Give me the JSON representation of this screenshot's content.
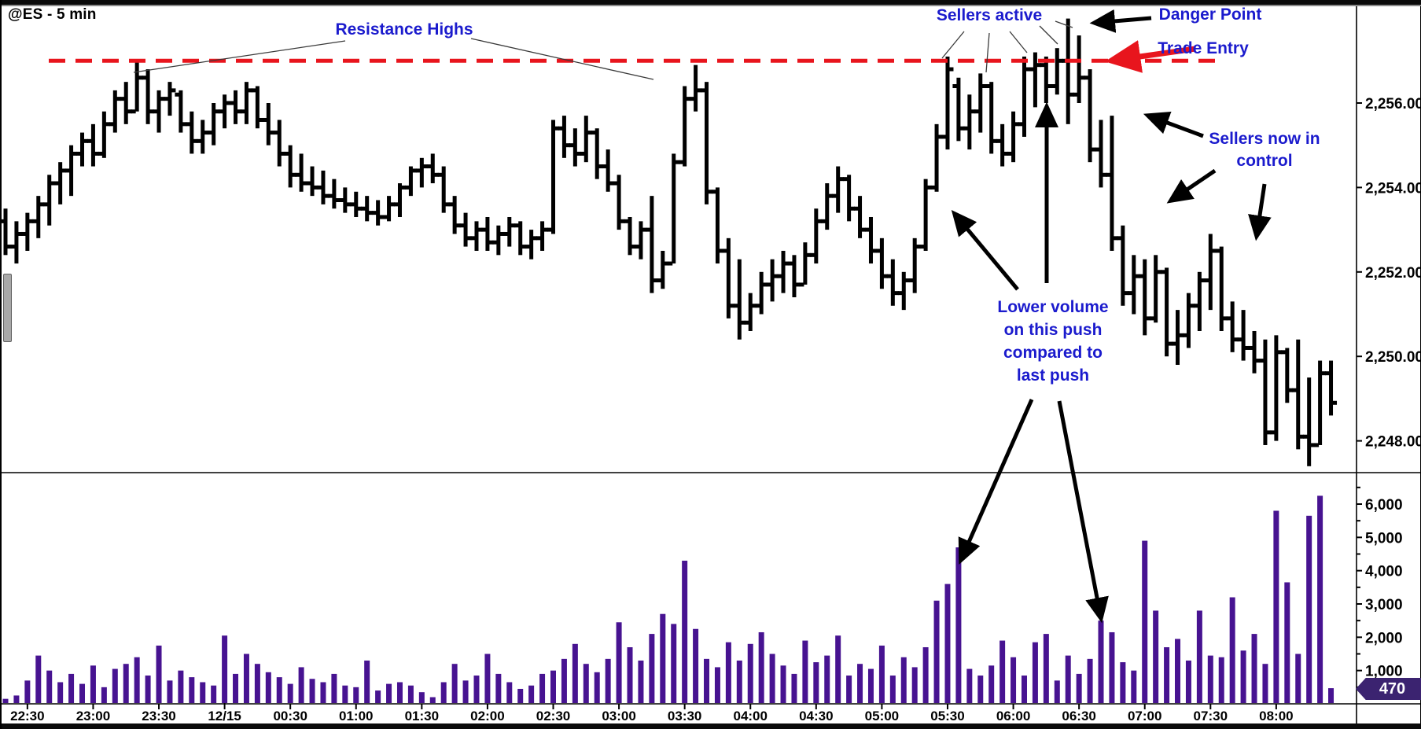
{
  "window": {
    "title": "@ES - 5 min"
  },
  "colors": {
    "bar": "#000000",
    "volume": "#471391",
    "resistance_line": "#e8151d",
    "annotation_text": "#1b1bcd",
    "annotation_arrow": "#000000",
    "trade_entry_arrow": "#e8151d",
    "badge_bg": "#3b2370",
    "badge_text": "#ffffff"
  },
  "annotations": {
    "resistance": "Resistance Highs",
    "sellers_active": "Sellers active",
    "danger_point": "Danger Point",
    "trade_entry": "Trade Entry",
    "sellers_control": {
      "line1": "Sellers now in",
      "line2": "control"
    },
    "lower_volume": {
      "line1": "Lower volume",
      "line2": "on this push",
      "line3": "compared to",
      "line4": "last push"
    }
  },
  "last_volume_badge": "470",
  "price_axis": {
    "labels": [
      "2,256.00",
      "2,254.00",
      "2,252.00",
      "2,250.00",
      "2,248.00"
    ],
    "values": [
      2256,
      2254,
      2252,
      2250,
      2248
    ]
  },
  "volume_axis": {
    "labels": [
      "6,000",
      "5,000",
      "4,000",
      "3,000",
      "2,000",
      "1,000"
    ],
    "values": [
      6000,
      5000,
      4000,
      3000,
      2000,
      1000
    ]
  },
  "time_axis": {
    "labels": [
      {
        "text": "22:30",
        "bar": 2
      },
      {
        "text": "23:00",
        "bar": 8
      },
      {
        "text": "23:30",
        "bar": 14
      },
      {
        "text": "12/15",
        "bar": 20,
        "session_break": true
      },
      {
        "text": "00:30",
        "bar": 26
      },
      {
        "text": "01:00",
        "bar": 32
      },
      {
        "text": "01:30",
        "bar": 38
      },
      {
        "text": "02:00",
        "bar": 44
      },
      {
        "text": "02:30",
        "bar": 50
      },
      {
        "text": "03:00",
        "bar": 56
      },
      {
        "text": "03:30",
        "bar": 62
      },
      {
        "text": "04:00",
        "bar": 68
      },
      {
        "text": "04:30",
        "bar": 74
      },
      {
        "text": "05:00",
        "bar": 80
      },
      {
        "text": "05:30",
        "bar": 86
      },
      {
        "text": "06:00",
        "bar": 92
      },
      {
        "text": "06:30",
        "bar": 98
      },
      {
        "text": "07:00",
        "bar": 104
      },
      {
        "text": "07:30",
        "bar": 110
      },
      {
        "text": "08:00",
        "bar": 116
      }
    ]
  },
  "chart_data": {
    "type": "bar",
    "subtype": "ohlc-with-volume",
    "title": "@ES - 5 min",
    "instrument": "@ES",
    "timeframe": "5 min",
    "resistance_level": 2257.0,
    "price_range": [
      2247.0,
      2258.3
    ],
    "volume_range": [
      0,
      6500
    ],
    "bar_tuple": [
      "time",
      "open",
      "high",
      "low",
      "close",
      "volume"
    ],
    "bars": [
      [
        "22:20",
        2253.2,
        2253.5,
        2252.4,
        2252.6,
        150
      ],
      [
        "22:25",
        2252.6,
        2253.2,
        2252.2,
        2252.9,
        250
      ],
      [
        "22:30",
        2252.9,
        2253.4,
        2252.5,
        2253.2,
        700
      ],
      [
        "22:35",
        2253.2,
        2253.8,
        2252.8,
        2253.6,
        1450
      ],
      [
        "22:40",
        2253.6,
        2254.3,
        2253.1,
        2254.1,
        1000
      ],
      [
        "22:45",
        2254.1,
        2254.6,
        2253.6,
        2254.4,
        650
      ],
      [
        "22:50",
        2254.4,
        2255.0,
        2253.8,
        2254.8,
        900
      ],
      [
        "22:55",
        2254.8,
        2255.3,
        2254.5,
        2255.1,
        600
      ],
      [
        "23:00",
        2255.1,
        2255.5,
        2254.5,
        2254.8,
        1150
      ],
      [
        "23:05",
        2254.8,
        2255.8,
        2254.7,
        2255.5,
        500
      ],
      [
        "23:10",
        2255.5,
        2256.3,
        2255.3,
        2256.1,
        1050
      ],
      [
        "23:15",
        2256.1,
        2256.5,
        2255.5,
        2255.8,
        1200
      ],
      [
        "23:20",
        2255.8,
        2257.0,
        2255.8,
        2256.6,
        1400
      ],
      [
        "23:25",
        2256.6,
        2256.8,
        2255.5,
        2255.8,
        850
      ],
      [
        "23:30",
        2255.8,
        2256.3,
        2255.3,
        2256.1,
        1750
      ],
      [
        "23:35",
        2256.1,
        2256.5,
        2255.7,
        2256.3,
        700
      ],
      [
        "23:40",
        2256.2,
        2256.3,
        2255.3,
        2255.5,
        1000
      ],
      [
        "23:45",
        2255.5,
        2255.8,
        2254.8,
        2255.1,
        800
      ],
      [
        "23:50",
        2255.1,
        2255.6,
        2254.8,
        2255.3,
        650
      ],
      [
        "23:55",
        2255.3,
        2256.0,
        2255.0,
        2255.8,
        550
      ],
      [
        "00:00",
        2255.8,
        2256.2,
        2255.4,
        2256.0,
        2050
      ],
      [
        "00:05",
        2256.0,
        2256.3,
        2255.5,
        2255.8,
        900
      ],
      [
        "00:10",
        2255.8,
        2256.5,
        2255.5,
        2256.3,
        1500
      ],
      [
        "00:15",
        2256.3,
        2256.4,
        2255.4,
        2255.6,
        1200
      ],
      [
        "00:20",
        2255.6,
        2256.0,
        2255.0,
        2255.3,
        950
      ],
      [
        "00:25",
        2255.3,
        2255.6,
        2254.5,
        2254.8,
        800
      ],
      [
        "00:30",
        2254.8,
        2255.0,
        2254.0,
        2254.3,
        600
      ],
      [
        "00:35",
        2254.3,
        2254.8,
        2253.9,
        2254.1,
        1100
      ],
      [
        "00:40",
        2254.1,
        2254.5,
        2253.8,
        2254.0,
        750
      ],
      [
        "00:45",
        2254.0,
        2254.4,
        2253.6,
        2253.8,
        650
      ],
      [
        "00:50",
        2253.8,
        2254.2,
        2253.5,
        2253.7,
        900
      ],
      [
        "00:55",
        2253.7,
        2254.0,
        2253.4,
        2253.6,
        550
      ],
      [
        "01:00",
        2253.6,
        2253.9,
        2253.3,
        2253.5,
        500
      ],
      [
        "01:05",
        2253.5,
        2253.8,
        2253.2,
        2253.4,
        1300
      ],
      [
        "01:10",
        2253.4,
        2253.7,
        2253.1,
        2253.3,
        400
      ],
      [
        "01:15",
        2253.3,
        2253.8,
        2253.2,
        2253.6,
        600
      ],
      [
        "01:20",
        2253.6,
        2254.1,
        2253.3,
        2254.0,
        650
      ],
      [
        "01:25",
        2254.0,
        2254.5,
        2253.8,
        2254.4,
        550
      ],
      [
        "01:30",
        2254.4,
        2254.7,
        2254.0,
        2254.5,
        350
      ],
      [
        "01:35",
        2254.5,
        2254.8,
        2254.1,
        2254.3,
        200
      ],
      [
        "01:40",
        2254.3,
        2254.5,
        2253.4,
        2253.6,
        650
      ],
      [
        "01:45",
        2253.6,
        2253.8,
        2252.9,
        2253.1,
        1200
      ],
      [
        "01:50",
        2253.1,
        2253.4,
        2252.6,
        2252.8,
        700
      ],
      [
        "01:55",
        2252.8,
        2253.2,
        2252.5,
        2253.0,
        850
      ],
      [
        "02:00",
        2253.0,
        2253.3,
        2252.5,
        2252.7,
        1500
      ],
      [
        "02:05",
        2252.7,
        2253.1,
        2252.4,
        2252.9,
        900
      ],
      [
        "02:10",
        2252.9,
        2253.3,
        2252.6,
        2253.1,
        650
      ],
      [
        "02:15",
        2253.1,
        2253.2,
        2252.4,
        2252.6,
        450
      ],
      [
        "02:20",
        2252.6,
        2253.0,
        2252.3,
        2252.8,
        550
      ],
      [
        "02:25",
        2252.8,
        2253.2,
        2252.5,
        2253.0,
        900
      ],
      [
        "02:30",
        2253.0,
        2255.6,
        2252.9,
        2255.4,
        1000
      ],
      [
        "02:35",
        2255.4,
        2255.7,
        2254.7,
        2255.0,
        1350
      ],
      [
        "02:40",
        2255.0,
        2255.4,
        2254.5,
        2254.8,
        1800
      ],
      [
        "02:45",
        2254.8,
        2255.7,
        2254.6,
        2255.3,
        1200
      ],
      [
        "02:50",
        2255.3,
        2255.4,
        2254.2,
        2254.5,
        950
      ],
      [
        "02:55",
        2254.5,
        2254.9,
        2253.9,
        2254.1,
        1350
      ],
      [
        "03:00",
        2254.1,
        2254.3,
        2253.0,
        2253.2,
        2450
      ],
      [
        "03:05",
        2253.2,
        2253.3,
        2252.4,
        2252.6,
        1700
      ],
      [
        "03:10",
        2252.6,
        2253.2,
        2252.3,
        2253.0,
        1300
      ],
      [
        "03:15",
        2253.0,
        2253.8,
        2251.5,
        2251.8,
        2100
      ],
      [
        "03:20",
        2251.8,
        2252.5,
        2251.6,
        2252.2,
        2700
      ],
      [
        "03:25",
        2252.2,
        2254.8,
        2252.2,
        2254.6,
        2400
      ],
      [
        "03:30",
        2254.6,
        2256.4,
        2254.5,
        2256.1,
        4300
      ],
      [
        "03:35",
        2256.1,
        2256.9,
        2255.8,
        2256.3,
        2250
      ],
      [
        "03:40",
        2256.3,
        2256.5,
        2253.6,
        2253.9,
        1350
      ],
      [
        "03:45",
        2253.9,
        2254.0,
        2252.2,
        2252.5,
        1100
      ],
      [
        "03:50",
        2252.5,
        2252.8,
        2250.9,
        2251.2,
        1850
      ],
      [
        "03:55",
        2251.2,
        2252.3,
        2250.4,
        2250.8,
        1300
      ],
      [
        "04:00",
        2250.8,
        2251.5,
        2250.6,
        2251.2,
        1800
      ],
      [
        "04:05",
        2251.2,
        2252.0,
        2251.0,
        2251.7,
        2150
      ],
      [
        "04:10",
        2251.7,
        2252.3,
        2251.3,
        2251.9,
        1500
      ],
      [
        "04:15",
        2251.9,
        2252.5,
        2251.5,
        2252.2,
        1150
      ],
      [
        "04:20",
        2252.2,
        2252.4,
        2251.4,
        2251.7,
        900
      ],
      [
        "04:25",
        2251.7,
        2252.7,
        2251.7,
        2252.4,
        1900
      ],
      [
        "04:30",
        2252.4,
        2253.5,
        2252.2,
        2253.2,
        1250
      ],
      [
        "04:35",
        2253.2,
        2254.1,
        2253.0,
        2253.8,
        1450
      ],
      [
        "04:40",
        2253.8,
        2254.5,
        2253.4,
        2254.2,
        2050
      ],
      [
        "04:45",
        2254.2,
        2254.3,
        2253.2,
        2253.5,
        850
      ],
      [
        "04:50",
        2253.5,
        2253.8,
        2252.8,
        2253.0,
        1200
      ],
      [
        "04:55",
        2253.0,
        2253.3,
        2252.2,
        2252.5,
        1050
      ],
      [
        "05:00",
        2252.5,
        2252.8,
        2251.6,
        2251.9,
        1750
      ],
      [
        "05:05",
        2251.9,
        2252.3,
        2251.2,
        2251.5,
        850
      ],
      [
        "05:10",
        2251.5,
        2252.0,
        2251.1,
        2251.8,
        1400
      ],
      [
        "05:15",
        2251.8,
        2252.8,
        2251.5,
        2252.6,
        1100
      ],
      [
        "05:20",
        2252.6,
        2254.2,
        2252.5,
        2254.0,
        1700
      ],
      [
        "05:25",
        2254.0,
        2255.5,
        2253.9,
        2255.2,
        3100
      ],
      [
        "05:30",
        2255.2,
        2257.1,
        2254.9,
        2256.8,
        3600
      ],
      [
        "05:35",
        2256.4,
        2256.6,
        2255.1,
        2255.4,
        4700
      ],
      [
        "05:40",
        2255.4,
        2256.2,
        2254.9,
        2255.8,
        1050
      ],
      [
        "05:45",
        2255.8,
        2256.7,
        2255.3,
        2256.4,
        850
      ],
      [
        "05:50",
        2256.4,
        2256.5,
        2254.8,
        2255.1,
        1150
      ],
      [
        "05:55",
        2255.1,
        2255.5,
        2254.5,
        2254.8,
        1900
      ],
      [
        "06:00",
        2254.8,
        2255.8,
        2254.6,
        2255.5,
        1400
      ],
      [
        "06:05",
        2255.5,
        2257.1,
        2255.2,
        2256.8,
        850
      ],
      [
        "06:10",
        2256.8,
        2257.2,
        2255.9,
        2256.9,
        1850
      ],
      [
        "06:15",
        2256.9,
        2257.1,
        2256.0,
        2256.4,
        2100
      ],
      [
        "06:20",
        2256.4,
        2257.3,
        2256.2,
        2257.0,
        700
      ],
      [
        "06:25",
        2257.0,
        2258.0,
        2255.5,
        2256.2,
        1450
      ],
      [
        "06:30",
        2256.2,
        2257.6,
        2256.0,
        2256.6,
        900
      ],
      [
        "06:35",
        2256.6,
        2256.8,
        2254.6,
        2254.9,
        1350
      ],
      [
        "06:40",
        2254.9,
        2255.6,
        2254.0,
        2254.3,
        2500
      ],
      [
        "06:45",
        2254.3,
        2255.7,
        2252.5,
        2252.8,
        2150
      ],
      [
        "06:50",
        2252.8,
        2253.1,
        2251.2,
        2251.5,
        1250
      ],
      [
        "06:55",
        2251.5,
        2252.4,
        2251.0,
        2251.9,
        1000
      ],
      [
        "07:00",
        2251.9,
        2252.3,
        2250.5,
        2250.9,
        4900
      ],
      [
        "07:05",
        2250.9,
        2252.4,
        2250.8,
        2252.0,
        2800
      ],
      [
        "07:10",
        2252.0,
        2252.1,
        2250.0,
        2250.3,
        1700
      ],
      [
        "07:15",
        2250.3,
        2251.1,
        2249.8,
        2250.5,
        1950
      ],
      [
        "07:20",
        2250.5,
        2251.5,
        2250.2,
        2251.2,
        1300
      ],
      [
        "07:25",
        2251.2,
        2252.0,
        2250.6,
        2251.8,
        2800
      ],
      [
        "07:30",
        2251.8,
        2252.9,
        2251.1,
        2252.5,
        1450
      ],
      [
        "07:35",
        2252.5,
        2252.6,
        2250.6,
        2250.9,
        1400
      ],
      [
        "07:40",
        2250.9,
        2251.3,
        2250.1,
        2250.4,
        3200
      ],
      [
        "07:45",
        2250.4,
        2251.1,
        2249.9,
        2250.2,
        1600
      ],
      [
        "07:50",
        2250.2,
        2250.6,
        2249.6,
        2249.9,
        2100
      ],
      [
        "07:55",
        2249.9,
        2250.4,
        2247.9,
        2248.2,
        1200
      ],
      [
        "08:00",
        2248.2,
        2250.5,
        2248.0,
        2250.1,
        5800
      ],
      [
        "08:05",
        2250.1,
        2250.2,
        2248.9,
        2249.2,
        3650
      ],
      [
        "08:10",
        2249.2,
        2250.4,
        2247.8,
        2248.1,
        1500
      ],
      [
        "08:15",
        2248.1,
        2249.5,
        2247.4,
        2247.9,
        5650
      ],
      [
        "08:20",
        2247.9,
        2249.9,
        2247.9,
        2249.6,
        6250
      ],
      [
        "08:25",
        2249.6,
        2249.9,
        2248.6,
        2248.9,
        470
      ]
    ]
  }
}
